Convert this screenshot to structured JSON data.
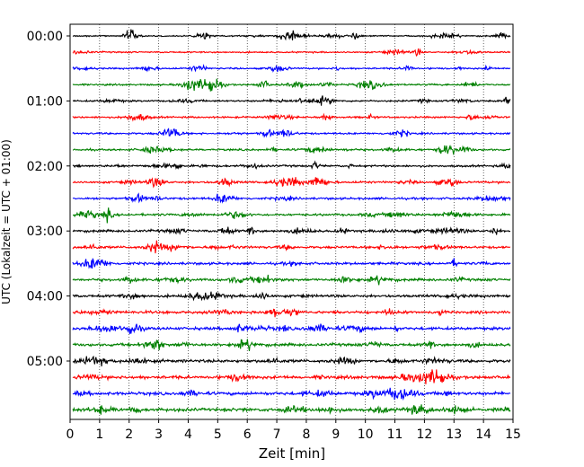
{
  "chart_data": {
    "type": "line",
    "title": "",
    "xlabel": "Zeit  [min]",
    "ylabel": "UTC (Lokalzeit = UTC + 01:00)",
    "xlim": [
      0,
      15
    ],
    "x_ticks": [
      "0",
      "1",
      "2",
      "3",
      "4",
      "5",
      "6",
      "7",
      "8",
      "9",
      "10",
      "11",
      "12",
      "13",
      "14",
      "15"
    ],
    "y_tick_labels": [
      "00:00",
      "01:00",
      "02:00",
      "03:00",
      "04:00",
      "05:00"
    ],
    "grid": "vertical dotted lines at each minute",
    "trace_colors": [
      "#000000",
      "#ff0000",
      "#0000ff",
      "#008000"
    ],
    "traces_count": 24,
    "trace_interval_minutes": 15,
    "description": "Helicorder-style seismogram: each row is a 15-minute trace, rows ordered top to bottom in time, colors cycling black, red, blue, green."
  }
}
